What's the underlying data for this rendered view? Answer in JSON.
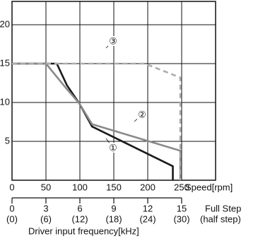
{
  "chart_data": {
    "type": "line",
    "xlabel": "Speed[rpm]",
    "xlim": [
      0,
      300
    ],
    "xticks": [
      0,
      50,
      100,
      150,
      200,
      250
    ],
    "ylim": [
      0,
      23
    ],
    "yticks": [
      5,
      10,
      15,
      20
    ],
    "grid": true,
    "series": [
      {
        "name": "①",
        "color": "#1a1a1a",
        "dashed": false,
        "x": [
          0,
          50,
          66,
          81,
          99,
          118,
          237,
          237
        ],
        "values": [
          15,
          15,
          15,
          12.2,
          9.9,
          6.9,
          1.8,
          0
        ]
      },
      {
        "name": "②",
        "color": "#8a8a8a",
        "dashed": false,
        "x": [
          0,
          50,
          81,
          99,
          118,
          248,
          248
        ],
        "values": [
          15,
          15,
          11.7,
          9.9,
          7.2,
          3.8,
          0
        ]
      },
      {
        "name": "③",
        "color": "#acacac",
        "dashed": true,
        "x": [
          0,
          196,
          248,
          248
        ],
        "values": [
          15,
          15,
          13.2,
          0
        ]
      }
    ],
    "full_step": {
      "label": "Full Step",
      "lim": [
        0,
        18
      ],
      "ticks": [
        0,
        3,
        6,
        9,
        12,
        15
      ]
    },
    "half_step": {
      "label": "(half step)",
      "lim": [
        0,
        36
      ],
      "ticks": [
        {
          "value": 0,
          "label": "(0)"
        },
        {
          "value": 6,
          "label": "(6)"
        },
        {
          "value": 12,
          "label": "(12)"
        },
        {
          "value": 18,
          "label": "(18)"
        },
        {
          "value": 24,
          "label": "(24)"
        },
        {
          "value": 30,
          "label": "(30)"
        }
      ]
    },
    "frequency_label": "Driver input frequency[kHz]"
  }
}
